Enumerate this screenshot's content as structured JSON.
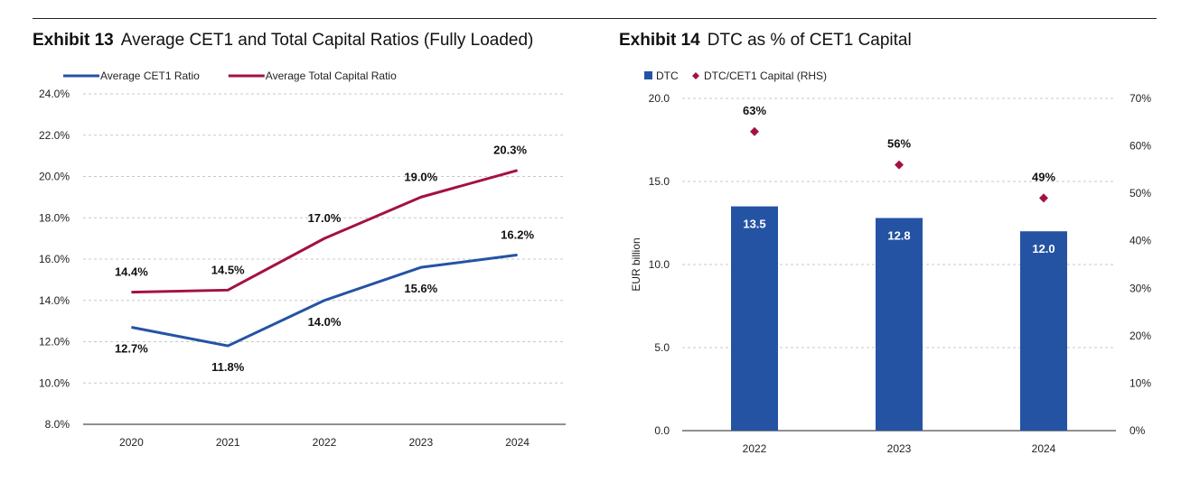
{
  "exhibit13": {
    "number": "Exhibit 13",
    "title": "Average CET1 and Total Capital Ratios (Fully Loaded)"
  },
  "exhibit14": {
    "number": "Exhibit 14",
    "title": "DTC as % of CET1 Capital"
  },
  "colors": {
    "blue": "#2453a4",
    "maroon": "#a3123f",
    "grid": "#c8c8c8",
    "axis": "#222222"
  },
  "chart_data": [
    {
      "type": "line",
      "x": [
        "2020",
        "2021",
        "2022",
        "2023",
        "2024"
      ],
      "series": [
        {
          "name": "Average CET1 Ratio",
          "values": [
            12.7,
            11.8,
            14.0,
            15.6,
            16.2
          ],
          "labels": [
            "12.7%",
            "11.8%",
            "14.0%",
            "15.6%",
            "16.2%"
          ],
          "color": "#2453a4"
        },
        {
          "name": "Average Total Capital Ratio",
          "values": [
            14.4,
            14.5,
            17.0,
            19.0,
            20.3
          ],
          "labels": [
            "14.4%",
            "14.5%",
            "17.0%",
            "19.0%",
            "20.3%"
          ],
          "color": "#a3123f"
        }
      ],
      "ylim": [
        8,
        24
      ],
      "yticks": [
        "8.0%",
        "10.0%",
        "12.0%",
        "14.0%",
        "16.0%",
        "18.0%",
        "20.0%",
        "22.0%",
        "24.0%"
      ],
      "grid": true,
      "legend": "top-left"
    },
    {
      "type": "bar",
      "categories": [
        "2022",
        "2023",
        "2024"
      ],
      "series": [
        {
          "name": "DTC",
          "values": [
            13.5,
            12.8,
            12.0
          ],
          "labels": [
            "13.5",
            "12.8",
            "12.0"
          ],
          "axis": "left",
          "color": "#2453a4"
        },
        {
          "name": "DTC/CET1 Capital (RHS)",
          "values": [
            63,
            56,
            49
          ],
          "labels": [
            "63%",
            "56%",
            "49%"
          ],
          "axis": "right",
          "marker": "diamond",
          "color": "#a3123f"
        }
      ],
      "ylabel": "EUR billion",
      "ylim": [
        0,
        20
      ],
      "yticks": [
        "0.0",
        "5.0",
        "10.0",
        "15.0",
        "20.0"
      ],
      "y2lim": [
        0,
        70
      ],
      "y2ticks": [
        "0%",
        "10%",
        "20%",
        "30%",
        "40%",
        "50%",
        "60%",
        "70%"
      ],
      "grid": true,
      "legend": "top-left"
    }
  ]
}
